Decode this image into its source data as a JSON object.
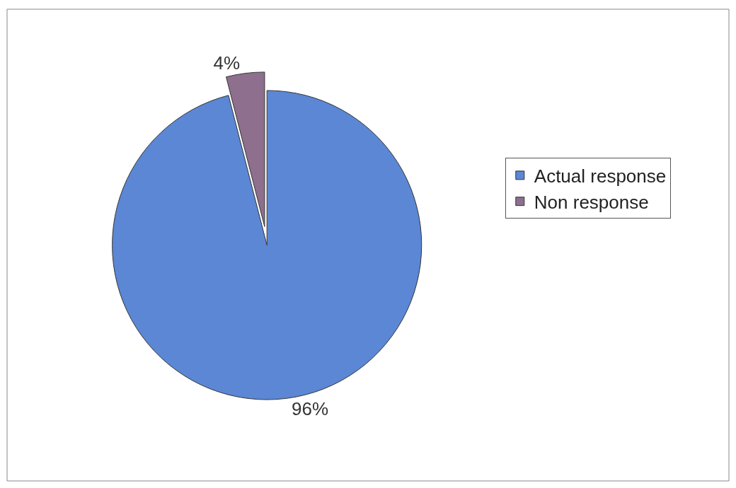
{
  "chart_data": {
    "type": "pie",
    "categories": [
      "Actual response",
      "Non response"
    ],
    "values": [
      96,
      4
    ],
    "colors": [
      "#5b87d4",
      "#8e6f8e"
    ],
    "value_labels": [
      "96%",
      "4%"
    ],
    "legend": "right"
  }
}
